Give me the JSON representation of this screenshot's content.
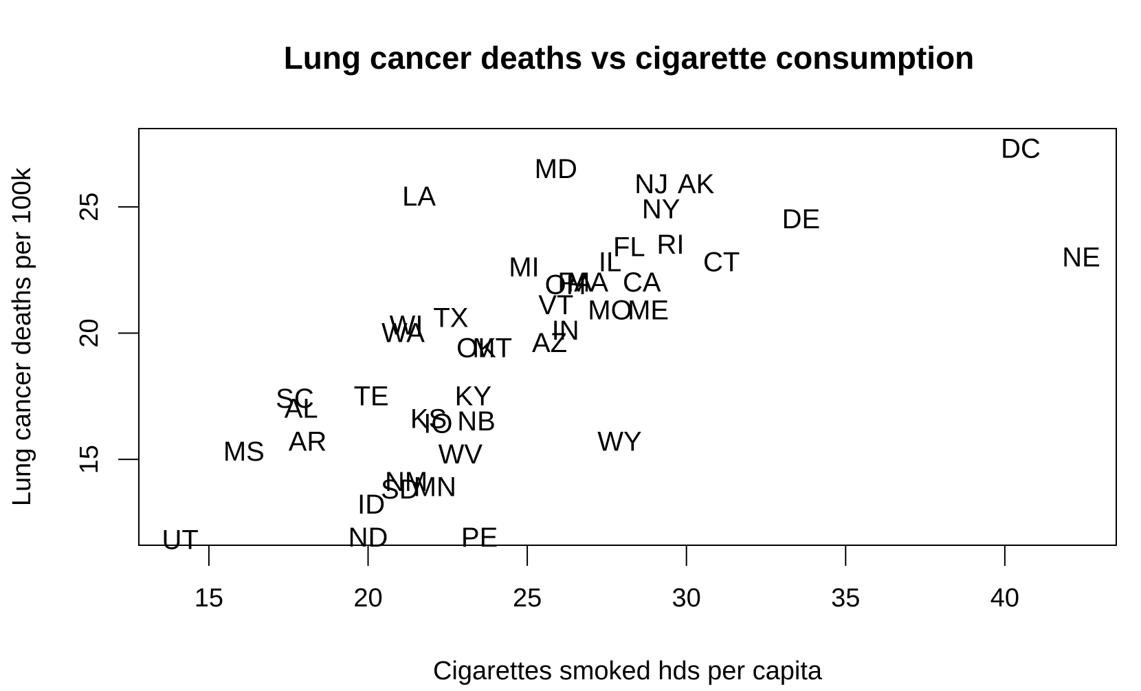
{
  "chart_data": {
    "type": "scatter",
    "title": "Lung cancer deaths vs cigarette consumption",
    "xlabel": "Cigarettes smoked hds per capita",
    "ylabel": "Lung cancer deaths per 100k",
    "xlim": [
      12.8,
      43.5
    ],
    "ylim": [
      11.6,
      28.1
    ],
    "xticks": [
      15,
      20,
      25,
      30,
      35,
      40
    ],
    "yticks": [
      15,
      20,
      25
    ],
    "grid": false,
    "marker": "text-label",
    "points": [
      {
        "label": "DC",
        "x": 40.5,
        "y": 27.3
      },
      {
        "label": "MD",
        "x": 25.9,
        "y": 26.5
      },
      {
        "label": "NJ",
        "x": 28.9,
        "y": 25.9
      },
      {
        "label": "AK",
        "x": 30.3,
        "y": 25.9
      },
      {
        "label": "LA",
        "x": 21.6,
        "y": 25.4
      },
      {
        "label": "NY",
        "x": 29.2,
        "y": 24.9
      },
      {
        "label": "DE",
        "x": 33.6,
        "y": 24.5
      },
      {
        "label": "RI",
        "x": 29.5,
        "y": 23.5
      },
      {
        "label": "FL",
        "x": 28.2,
        "y": 23.4
      },
      {
        "label": "NE",
        "x": 42.4,
        "y": 23.0
      },
      {
        "label": "CT",
        "x": 31.1,
        "y": 22.8
      },
      {
        "label": "IL",
        "x": 27.6,
        "y": 22.8
      },
      {
        "label": "MI",
        "x": 24.9,
        "y": 22.6
      },
      {
        "label": "OH",
        "x": 26.2,
        "y": 21.9
      },
      {
        "label": "PA",
        "x": 26.5,
        "y": 22.0
      },
      {
        "label": "MA",
        "x": 26.9,
        "y": 22.0
      },
      {
        "label": "CA",
        "x": 28.6,
        "y": 22.0
      },
      {
        "label": "VT",
        "x": 25.9,
        "y": 21.1
      },
      {
        "label": "MO",
        "x": 27.6,
        "y": 20.9
      },
      {
        "label": "ME",
        "x": 28.8,
        "y": 20.9
      },
      {
        "label": "TX",
        "x": 22.6,
        "y": 20.6
      },
      {
        "label": "WI",
        "x": 21.2,
        "y": 20.3
      },
      {
        "label": "WA",
        "x": 21.1,
        "y": 20.0
      },
      {
        "label": "IN",
        "x": 26.2,
        "y": 20.1
      },
      {
        "label": "AZ",
        "x": 25.7,
        "y": 19.6
      },
      {
        "label": "OK",
        "x": 23.4,
        "y": 19.4
      },
      {
        "label": "MT",
        "x": 23.9,
        "y": 19.4
      },
      {
        "label": "KY",
        "x": 23.3,
        "y": 17.5
      },
      {
        "label": "TE",
        "x": 20.1,
        "y": 17.5
      },
      {
        "label": "SC",
        "x": 17.7,
        "y": 17.4
      },
      {
        "label": "AL",
        "x": 17.9,
        "y": 17.0
      },
      {
        "label": "KS",
        "x": 21.9,
        "y": 16.6
      },
      {
        "label": "IO",
        "x": 22.2,
        "y": 16.4
      },
      {
        "label": "NB",
        "x": 23.4,
        "y": 16.5
      },
      {
        "label": "WY",
        "x": 27.9,
        "y": 15.7
      },
      {
        "label": "AR",
        "x": 18.1,
        "y": 15.7
      },
      {
        "label": "MS",
        "x": 16.1,
        "y": 15.3
      },
      {
        "label": "WV",
        "x": 22.9,
        "y": 15.2
      },
      {
        "label": "NM",
        "x": 21.2,
        "y": 14.1
      },
      {
        "label": "SD",
        "x": 21.0,
        "y": 13.8
      },
      {
        "label": "MN",
        "x": 22.1,
        "y": 13.9
      },
      {
        "label": "ID",
        "x": 20.1,
        "y": 13.2
      },
      {
        "label": "ND",
        "x": 20.0,
        "y": 11.9
      },
      {
        "label": "PE",
        "x": 23.5,
        "y": 11.9
      },
      {
        "label": "UT",
        "x": 14.1,
        "y": 11.8
      }
    ]
  }
}
